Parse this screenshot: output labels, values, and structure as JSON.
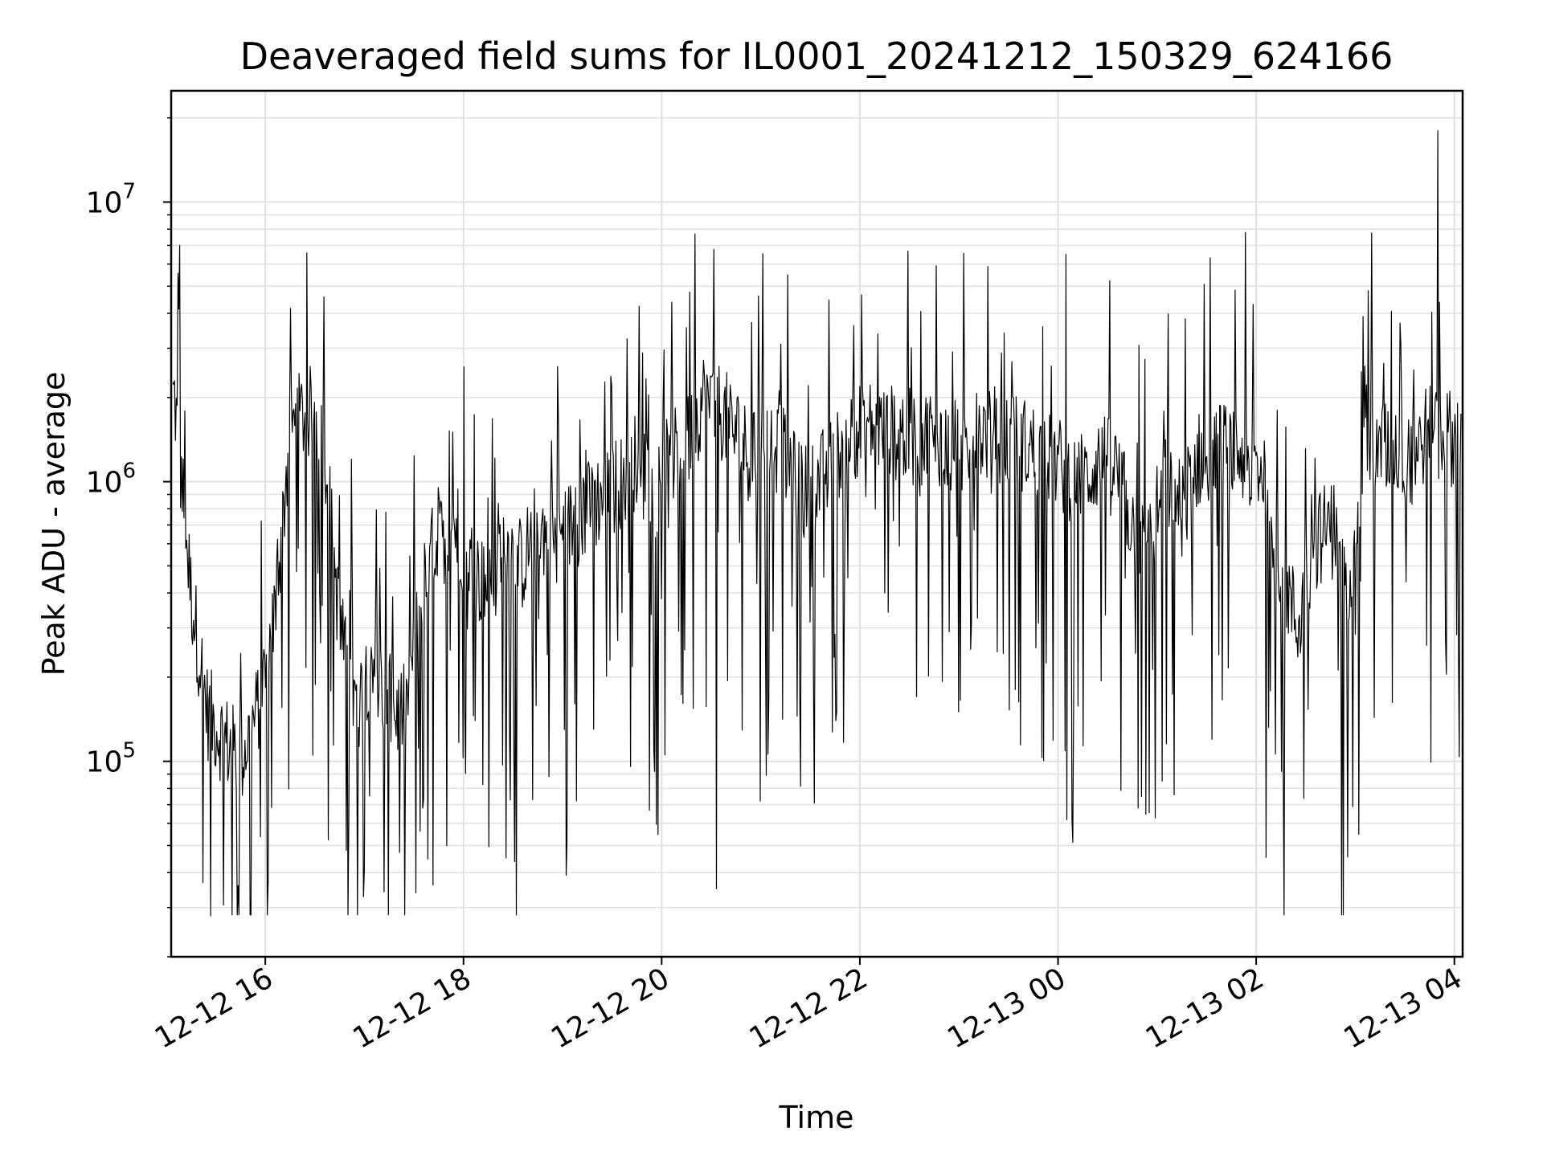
{
  "chart_data": {
    "type": "line",
    "title": "Deaveraged field sums for IL0001_20241212_150329_624166",
    "xlabel": "Time",
    "ylabel": "Peak ADU - average",
    "yscale": "log",
    "ylim": [
      20000,
      25000000
    ],
    "xlim": [
      "2024-12-12 15:03",
      "2024-12-13 04:05"
    ],
    "x_ticks": [
      "12-12 16",
      "12-12 18",
      "12-12 20",
      "12-12 22",
      "12-13 00",
      "12-13 02",
      "12-13 04"
    ],
    "y_ticks": [
      {
        "base": "10",
        "exp": "5"
      },
      {
        "base": "10",
        "exp": "6"
      },
      {
        "base": "10",
        "exp": "7"
      }
    ],
    "grid": true,
    "line_color": "#000000",
    "grid_color": "#e0e0e0",
    "series": [
      {
        "x": [
          "2024-12-12 15:05",
          "2024-12-12 15:15",
          "2024-12-12 15:25",
          "2024-12-12 15:35",
          "2024-12-12 15:45",
          "2024-12-12 15:55",
          "2024-12-12 16:05",
          "2024-12-12 16:15",
          "2024-12-12 16:25",
          "2024-12-12 16:35",
          "2024-12-12 16:45",
          "2024-12-12 16:55",
          "2024-12-12 17:05",
          "2024-12-12 17:15",
          "2024-12-12 17:25",
          "2024-12-12 17:35",
          "2024-12-12 17:45",
          "2024-12-12 17:55",
          "2024-12-12 18:05",
          "2024-12-12 18:15",
          "2024-12-12 18:25",
          "2024-12-12 18:35",
          "2024-12-12 18:45",
          "2024-12-12 18:55",
          "2024-12-12 19:05",
          "2024-12-12 19:15",
          "2024-12-12 19:25",
          "2024-12-12 19:35",
          "2024-12-12 19:45",
          "2024-12-12 19:55",
          "2024-12-12 20:05",
          "2024-12-12 20:15",
          "2024-12-12 20:25",
          "2024-12-12 20:35",
          "2024-12-12 20:45",
          "2024-12-12 20:55",
          "2024-12-12 21:05",
          "2024-12-12 21:15",
          "2024-12-12 21:25",
          "2024-12-12 21:35",
          "2024-12-12 21:45",
          "2024-12-12 21:55",
          "2024-12-12 22:05",
          "2024-12-12 22:15",
          "2024-12-12 22:25",
          "2024-12-12 22:35",
          "2024-12-12 22:45",
          "2024-12-12 22:55",
          "2024-12-12 23:05",
          "2024-12-12 23:15",
          "2024-12-12 23:25",
          "2024-12-12 23:35",
          "2024-12-12 23:45",
          "2024-12-12 23:55",
          "2024-12-13 00:05",
          "2024-12-13 00:15",
          "2024-12-13 00:25",
          "2024-12-13 00:35",
          "2024-12-13 00:45",
          "2024-12-13 00:55",
          "2024-12-13 01:05",
          "2024-12-13 01:15",
          "2024-12-13 01:25",
          "2024-12-13 01:35",
          "2024-12-13 01:45",
          "2024-12-13 01:55",
          "2024-12-13 02:05",
          "2024-12-13 02:15",
          "2024-12-13 02:25",
          "2024-12-13 02:35",
          "2024-12-13 02:45",
          "2024-12-13 02:55",
          "2024-12-13 03:05",
          "2024-12-13 03:15",
          "2024-12-13 03:25",
          "2024-12-13 03:35",
          "2024-12-13 03:45",
          "2024-12-13 03:50",
          "2024-12-13 03:55",
          "2024-12-13 04:05"
        ],
        "y": [
          2000000,
          400000,
          150000,
          120000,
          100000,
          150000,
          300000,
          1500000,
          1800000,
          1600000,
          300000,
          150000,
          250000,
          150000,
          150000,
          400000,
          600000,
          700000,
          500000,
          400000,
          600000,
          500000,
          700000,
          600000,
          700000,
          800000,
          900000,
          1000000,
          1200000,
          900000,
          1200000,
          1300000,
          2000000,
          1800000,
          1500000,
          1200000,
          1500000,
          1200000,
          900000,
          1000000,
          1200000,
          1500000,
          1600000,
          1500000,
          1500000,
          1400000,
          1500000,
          1300000,
          1400000,
          1500000,
          1400000,
          1400000,
          1300000,
          1200000,
          1100000,
          1000000,
          1200000,
          1100000,
          700000,
          600000,
          1000000,
          800000,
          1200000,
          1300000,
          1300000,
          1200000,
          1100000,
          500000,
          300000,
          600000,
          700000,
          400000,
          1300000,
          1300000,
          1300000,
          1200000,
          1600000,
          1500000,
          1500000,
          1300000
        ],
        "spikes": [
          {
            "x": "2024-12-13 03:50",
            "y": 18000000
          },
          {
            "x": "2024-12-12 15:27",
            "y": 28000
          },
          {
            "x": "2024-12-12 20:33",
            "y": 35000
          },
          {
            "x": "2024-12-13 00:05",
            "y": 6500000
          },
          {
            "x": "2024-12-12 15:08",
            "y": 7000000
          }
        ]
      }
    ]
  }
}
